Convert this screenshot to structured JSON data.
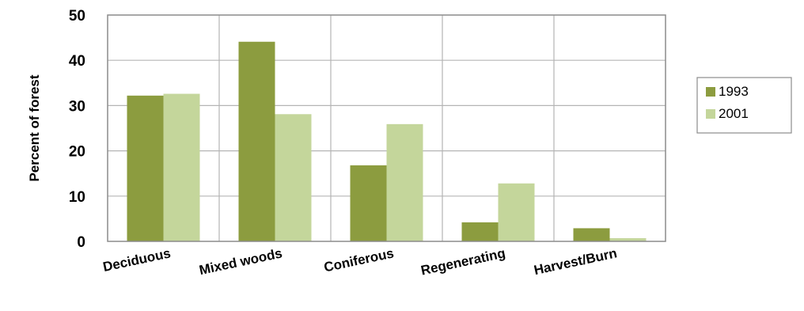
{
  "chart_data": {
    "type": "bar",
    "categories": [
      "Deciduous",
      "Mixed woods",
      "Coniferous",
      "Regenerating",
      "Harvest/Burn"
    ],
    "series": [
      {
        "name": "1993",
        "values": [
          32.2,
          44.1,
          16.8,
          4.2,
          2.9
        ],
        "color": "#8c9c3f"
      },
      {
        "name": "2001",
        "values": [
          32.6,
          28.1,
          25.9,
          12.8,
          0.7
        ],
        "color": "#c4d69b"
      }
    ],
    "ylabel": "Percent of forest",
    "ylim": [
      0,
      50
    ],
    "yticks": [
      0,
      10,
      20,
      30,
      40,
      50
    ],
    "grid": true,
    "legend": "right"
  }
}
